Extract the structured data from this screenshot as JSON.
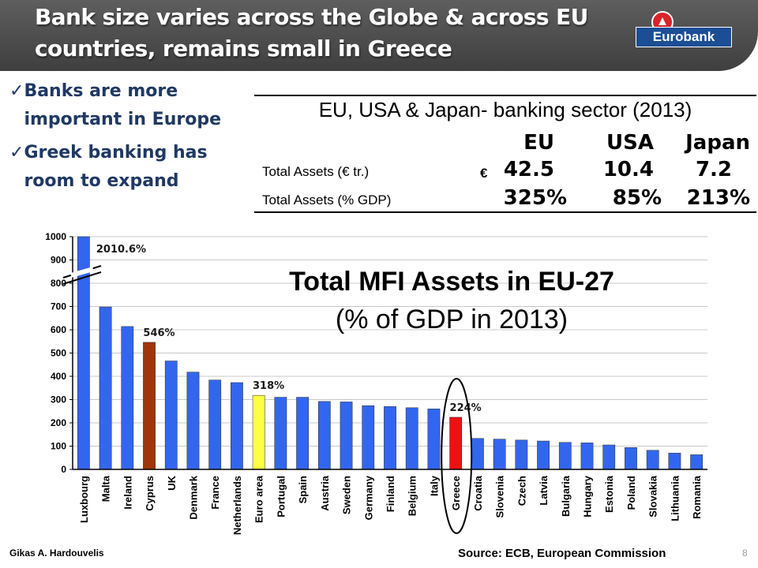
{
  "slide": {
    "title": "Bank size varies across the Globe & across EU countries, remains  small in Greece",
    "logo_text": "Eurobank",
    "bullets": [
      "Banks are more important in Europe",
      "Greek banking has room to expand"
    ],
    "check_glyph": "✓",
    "author": "Gikas A. Hardouvelis",
    "source": "Source: ECB, European Commission",
    "page_number": "8"
  },
  "table": {
    "title": "EU, USA & Japan- banking sector (2013)",
    "columns": [
      "EU",
      "USA",
      "Japan"
    ],
    "currency": "€",
    "rows": [
      {
        "label": "Total Assets (€ tr.)",
        "values": [
          "42.5",
          "10.4",
          "7.2"
        ]
      },
      {
        "label": "Total Assets (% GDP)",
        "values": [
          "325%",
          "85%",
          "213%"
        ]
      }
    ]
  },
  "chart_data": {
    "type": "bar",
    "title": "Total MFI Assets in EU-27",
    "subtitle": "(% of GDP in 2013)",
    "categories": [
      "Luxbourg",
      "Malta",
      "Ireland",
      "Cyprus",
      "UK",
      "Denmark",
      "France",
      "Netherlands",
      "Euro area",
      "Portugal",
      "Spain",
      "Austria",
      "Sweden",
      "Germany",
      "Finland",
      "Belgium",
      "Italy",
      "Greece",
      "Croatia",
      "Slovenia",
      "Czech",
      "Latvia",
      "Bulgaria",
      "Hungary",
      "Estonia",
      "Poland",
      "Slovakia",
      "Lithuania",
      "Romania"
    ],
    "values": [
      2010.6,
      698,
      614,
      546,
      466,
      418,
      384,
      373,
      318,
      310,
      310,
      292,
      290,
      274,
      270,
      265,
      260,
      224,
      133,
      130,
      126,
      122,
      116,
      114,
      105,
      94,
      82,
      70,
      63
    ],
    "bar_colors": {
      "default": "#3366ee",
      "Cyprus": "#a0350b",
      "Euro area": "#ffff44",
      "Greece": "#ee1111"
    },
    "annotations": [
      {
        "category": "Luxbourg",
        "text": "2010.6%"
      },
      {
        "category": "Cyprus",
        "text": "546%"
      },
      {
        "category": "Euro area",
        "text": "318%"
      },
      {
        "category": "Greece",
        "text": "224%"
      }
    ],
    "ylim": [
      0,
      1000
    ],
    "yticks": [
      0,
      100,
      200,
      300,
      400,
      500,
      600,
      700,
      800,
      900,
      1000
    ],
    "axis_break": true,
    "highlight": "Greece",
    "grid": true,
    "xlabel": "",
    "ylabel": ""
  }
}
